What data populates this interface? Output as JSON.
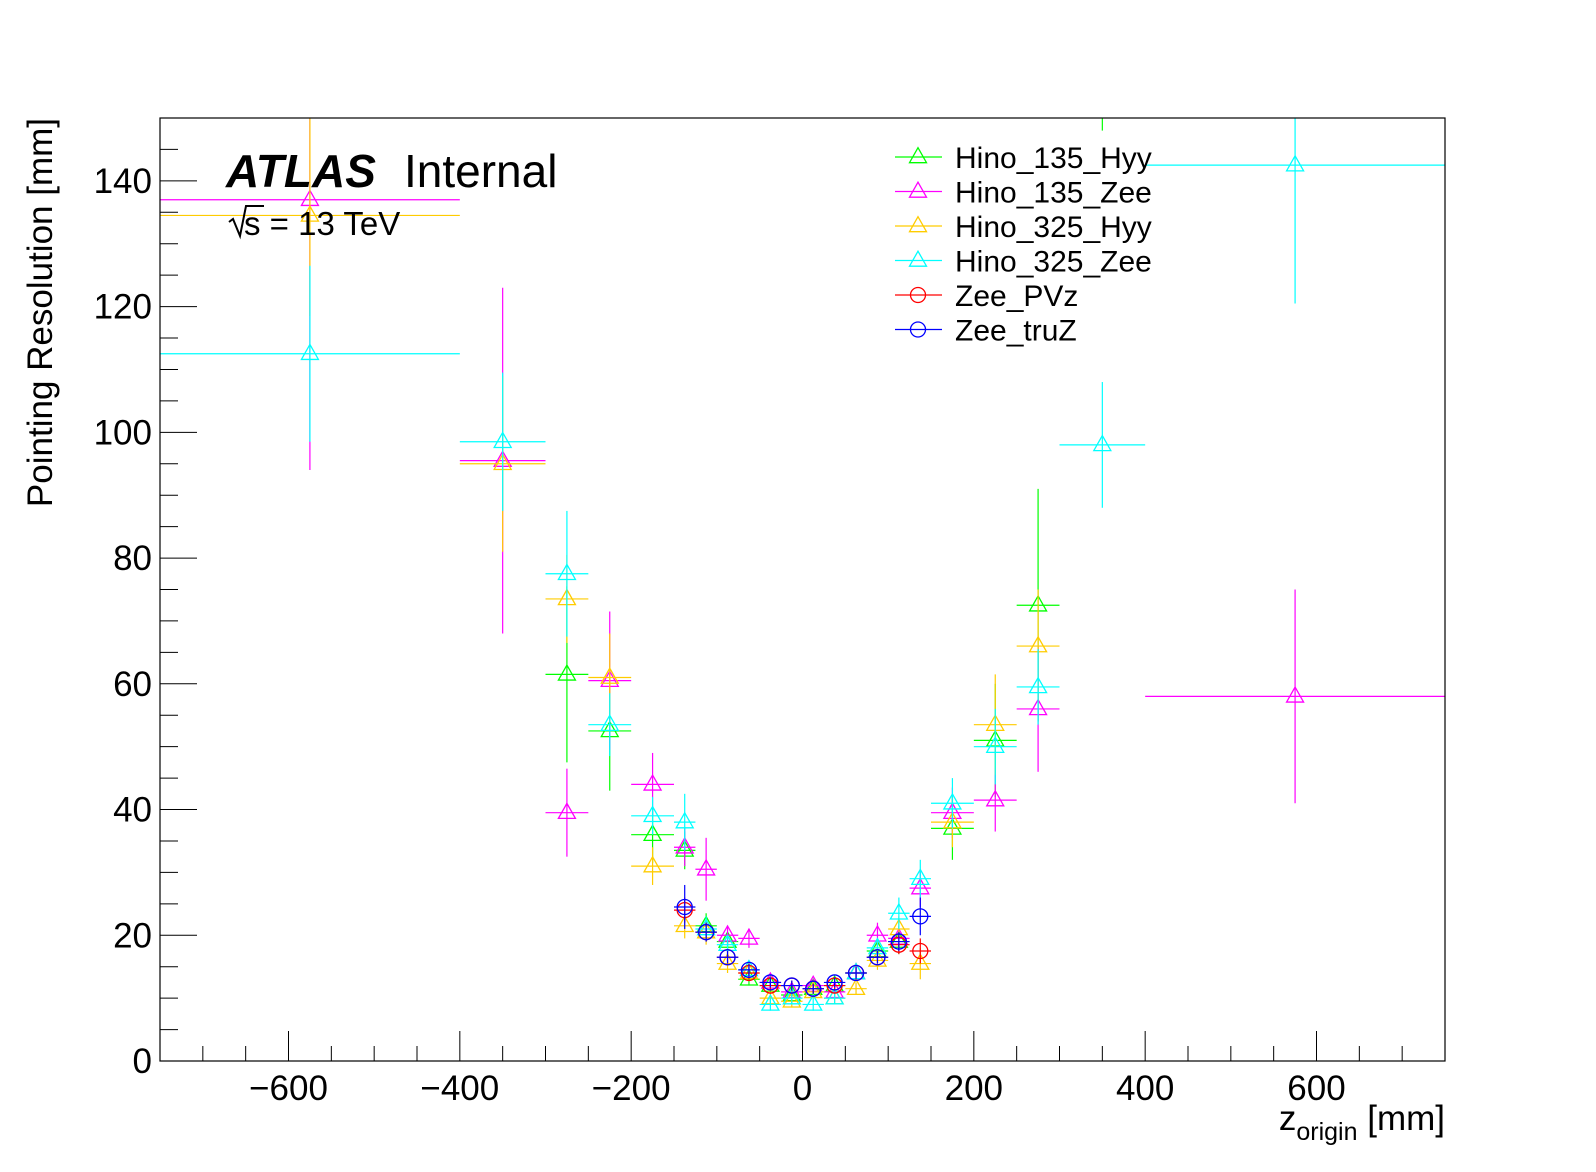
{
  "chart_data": {
    "type": "scatter",
    "xlabel": "z",
    "xlabel_sub": "origin",
    "xlabel_unit": "[mm]",
    "ylabel": "Pointing Resolution [mm]",
    "xlim": [
      -750,
      750
    ],
    "ylim": [
      0,
      150
    ],
    "x_ticks": [
      -600,
      -400,
      -200,
      0,
      200,
      400,
      600
    ],
    "y_ticks": [
      0,
      20,
      40,
      60,
      80,
      100,
      120,
      140
    ],
    "x_tick_labels": [
      "−600",
      "−400",
      "−200",
      "0",
      "200",
      "400",
      "600"
    ],
    "y_tick_labels": [
      "0",
      "20",
      "40",
      "60",
      "80",
      "100",
      "120",
      "140"
    ],
    "grid": false,
    "legend_position": "top-right",
    "atlas_label": "ATLAS",
    "atlas_sublabel": "Internal",
    "energy_label": "s = 13 TeV",
    "series": [
      {
        "name": "Hino_135_Hyy",
        "color": "#00ff00",
        "marker": "triangle",
        "points": [
          {
            "x": -275,
            "y": 61.5,
            "xerr": 25,
            "yerr": 14
          },
          {
            "x": -225,
            "y": 52.5,
            "xerr": 25,
            "yerr": 9.5
          },
          {
            "x": -175,
            "y": 36,
            "xerr": 25,
            "yerr": 4.5
          },
          {
            "x": -137.5,
            "y": 33.5,
            "xerr": 12.5,
            "yerr": 3
          },
          {
            "x": -112.5,
            "y": 21.5,
            "xerr": 12.5,
            "yerr": 2
          },
          {
            "x": -87.5,
            "y": 19,
            "xerr": 12.5,
            "yerr": 1.5
          },
          {
            "x": -62.5,
            "y": 13,
            "xerr": 12.5,
            "yerr": 1
          },
          {
            "x": -37.5,
            "y": 12,
            "xerr": 12.5,
            "yerr": 1
          },
          {
            "x": -12.5,
            "y": 10.5,
            "xerr": 12.5,
            "yerr": 1
          },
          {
            "x": 12.5,
            "y": 11.5,
            "xerr": 12.5,
            "yerr": 1
          },
          {
            "x": 37.5,
            "y": 12,
            "xerr": 12.5,
            "yerr": 1
          },
          {
            "x": 62.5,
            "y": 14,
            "xerr": 12.5,
            "yerr": 1
          },
          {
            "x": 87.5,
            "y": 17.5,
            "xerr": 12.5,
            "yerr": 1.5
          },
          {
            "x": 112.5,
            "y": 19,
            "xerr": 12.5,
            "yerr": 2
          },
          {
            "x": 175,
            "y": 37,
            "xerr": 25,
            "yerr": 5
          },
          {
            "x": 225,
            "y": 51,
            "xerr": 25,
            "yerr": 9
          },
          {
            "x": 275,
            "y": 72.5,
            "xerr": 25,
            "yerr": 18.5
          },
          {
            "x": 350,
            "y": 157,
            "xerr": 50,
            "yerr": 9
          }
        ]
      },
      {
        "name": "Hino_135_Zee",
        "color": "#ff00ff",
        "marker": "triangle",
        "points": [
          {
            "x": -575,
            "y": 137,
            "xerr": 175,
            "yerr": 43
          },
          {
            "x": -350,
            "y": 95.5,
            "xerr": 50,
            "yerr": 27.5
          },
          {
            "x": -275,
            "y": 39.5,
            "xerr": 25,
            "yerr": 7
          },
          {
            "x": -225,
            "y": 60.5,
            "xerr": 25,
            "yerr": 11
          },
          {
            "x": -175,
            "y": 44,
            "xerr": 25,
            "yerr": 5
          },
          {
            "x": -137.5,
            "y": 34,
            "xerr": 12.5,
            "yerr": 3
          },
          {
            "x": -112.5,
            "y": 30.5,
            "xerr": 12.5,
            "yerr": 5
          },
          {
            "x": -87.5,
            "y": 20,
            "xerr": 12.5,
            "yerr": 1.5
          },
          {
            "x": -62.5,
            "y": 19.5,
            "xerr": 12.5,
            "yerr": 1.5
          },
          {
            "x": -37.5,
            "y": 12.5,
            "xerr": 12.5,
            "yerr": 1
          },
          {
            "x": -12.5,
            "y": 11,
            "xerr": 12.5,
            "yerr": 1
          },
          {
            "x": 12.5,
            "y": 12,
            "xerr": 12.5,
            "yerr": 1
          },
          {
            "x": 37.5,
            "y": 11,
            "xerr": 12.5,
            "yerr": 1
          },
          {
            "x": 62.5,
            "y": 14,
            "xerr": 12.5,
            "yerr": 1
          },
          {
            "x": 87.5,
            "y": 20,
            "xerr": 12.5,
            "yerr": 2
          },
          {
            "x": 112.5,
            "y": 19.5,
            "xerr": 12.5,
            "yerr": 2
          },
          {
            "x": 137.5,
            "y": 27.5,
            "xerr": 12.5,
            "yerr": 3
          },
          {
            "x": 175,
            "y": 39.5,
            "xerr": 25,
            "yerr": 4
          },
          {
            "x": 225,
            "y": 41.5,
            "xerr": 25,
            "yerr": 5
          },
          {
            "x": 275,
            "y": 56,
            "xerr": 25,
            "yerr": 10
          },
          {
            "x": 575,
            "y": 58,
            "xerr": 175,
            "yerr": 17
          }
        ]
      },
      {
        "name": "Hino_325_Hyy",
        "color": "#ffcc00",
        "marker": "triangle",
        "points": [
          {
            "x": -575,
            "y": 134.5,
            "xerr": 175,
            "yerr": 16
          },
          {
            "x": -350,
            "y": 95,
            "xerr": 50,
            "yerr": 14
          },
          {
            "x": -275,
            "y": 73.5,
            "xerr": 25,
            "yerr": 7
          },
          {
            "x": -225,
            "y": 61,
            "xerr": 25,
            "yerr": 7
          },
          {
            "x": -175,
            "y": 31,
            "xerr": 25,
            "yerr": 3
          },
          {
            "x": -137.5,
            "y": 21.5,
            "xerr": 12.5,
            "yerr": 2
          },
          {
            "x": -112.5,
            "y": 20.5,
            "xerr": 12.5,
            "yerr": 2
          },
          {
            "x": -87.5,
            "y": 15.5,
            "xerr": 12.5,
            "yerr": 1.5
          },
          {
            "x": -62.5,
            "y": 14,
            "xerr": 12.5,
            "yerr": 1
          },
          {
            "x": -37.5,
            "y": 10,
            "xerr": 12.5,
            "yerr": 1
          },
          {
            "x": -12.5,
            "y": 9.5,
            "xerr": 12.5,
            "yerr": 1
          },
          {
            "x": 12.5,
            "y": 11,
            "xerr": 12.5,
            "yerr": 1
          },
          {
            "x": 37.5,
            "y": 10,
            "xerr": 12.5,
            "yerr": 1
          },
          {
            "x": 62.5,
            "y": 11.5,
            "xerr": 12.5,
            "yerr": 1
          },
          {
            "x": 87.5,
            "y": 16,
            "xerr": 12.5,
            "yerr": 1.5
          },
          {
            "x": 112.5,
            "y": 21,
            "xerr": 12.5,
            "yerr": 2
          },
          {
            "x": 137.5,
            "y": 15.5,
            "xerr": 12.5,
            "yerr": 2.5
          },
          {
            "x": 175,
            "y": 38,
            "xerr": 25,
            "yerr": 4
          },
          {
            "x": 225,
            "y": 53.5,
            "xerr": 25,
            "yerr": 8
          },
          {
            "x": 275,
            "y": 66,
            "xerr": 25,
            "yerr": 9
          }
        ]
      },
      {
        "name": "Hino_325_Zee",
        "color": "#00ffff",
        "marker": "triangle",
        "points": [
          {
            "x": -575,
            "y": 112.5,
            "xerr": 175,
            "yerr": 14
          },
          {
            "x": -350,
            "y": 98.5,
            "xerr": 50,
            "yerr": 11
          },
          {
            "x": -275,
            "y": 77.5,
            "xerr": 25,
            "yerr": 10
          },
          {
            "x": -225,
            "y": 53.5,
            "xerr": 25,
            "yerr": 5
          },
          {
            "x": -175,
            "y": 39,
            "xerr": 25,
            "yerr": 3
          },
          {
            "x": -137.5,
            "y": 38,
            "xerr": 12.5,
            "yerr": 4.5
          },
          {
            "x": -112.5,
            "y": 21,
            "xerr": 12.5,
            "yerr": 2
          },
          {
            "x": -87.5,
            "y": 18.5,
            "xerr": 12.5,
            "yerr": 1.5
          },
          {
            "x": -62.5,
            "y": 14.5,
            "xerr": 12.5,
            "yerr": 1
          },
          {
            "x": -37.5,
            "y": 9,
            "xerr": 12.5,
            "yerr": 1
          },
          {
            "x": -12.5,
            "y": 10,
            "xerr": 12.5,
            "yerr": 1
          },
          {
            "x": 12.5,
            "y": 9,
            "xerr": 12.5,
            "yerr": 1
          },
          {
            "x": 37.5,
            "y": 10,
            "xerr": 12.5,
            "yerr": 1
          },
          {
            "x": 62.5,
            "y": 14,
            "xerr": 12.5,
            "yerr": 1
          },
          {
            "x": 87.5,
            "y": 18,
            "xerr": 12.5,
            "yerr": 1.5
          },
          {
            "x": 112.5,
            "y": 23.5,
            "xerr": 12.5,
            "yerr": 2.5
          },
          {
            "x": 137.5,
            "y": 29,
            "xerr": 12.5,
            "yerr": 3
          },
          {
            "x": 175,
            "y": 41,
            "xerr": 25,
            "yerr": 4
          },
          {
            "x": 225,
            "y": 50,
            "xerr": 25,
            "yerr": 6
          },
          {
            "x": 275,
            "y": 59.5,
            "xerr": 25,
            "yerr": 6
          },
          {
            "x": 350,
            "y": 98,
            "xerr": 50,
            "yerr": 10
          },
          {
            "x": 575,
            "y": 142.5,
            "xerr": 175,
            "yerr": 22
          }
        ]
      },
      {
        "name": "Zee_PVz",
        "color": "#ff0000",
        "marker": "circle",
        "points": [
          {
            "x": -137.5,
            "y": 24,
            "xerr": 12.5,
            "yerr": 2
          },
          {
            "x": -112.5,
            "y": 20.5,
            "xerr": 12.5,
            "yerr": 1.5
          },
          {
            "x": -87.5,
            "y": 16.5,
            "xerr": 12.5,
            "yerr": 1
          },
          {
            "x": -62.5,
            "y": 14,
            "xerr": 12.5,
            "yerr": 1
          },
          {
            "x": -37.5,
            "y": 12,
            "xerr": 12.5,
            "yerr": 0.8
          },
          {
            "x": -12.5,
            "y": 12,
            "xerr": 12.5,
            "yerr": 0.8
          },
          {
            "x": 12.5,
            "y": 11.5,
            "xerr": 12.5,
            "yerr": 0.8
          },
          {
            "x": 37.5,
            "y": 12,
            "xerr": 12.5,
            "yerr": 0.8
          },
          {
            "x": 62.5,
            "y": 14,
            "xerr": 12.5,
            "yerr": 1
          },
          {
            "x": 87.5,
            "y": 16.5,
            "xerr": 12.5,
            "yerr": 1
          },
          {
            "x": 112.5,
            "y": 18.5,
            "xerr": 12.5,
            "yerr": 1.5
          },
          {
            "x": 137.5,
            "y": 17.5,
            "xerr": 12.5,
            "yerr": 2
          }
        ]
      },
      {
        "name": "Zee_truZ",
        "color": "#0000ff",
        "marker": "circle",
        "points": [
          {
            "x": -137.5,
            "y": 24.5,
            "xerr": 12.5,
            "yerr": 3.5
          },
          {
            "x": -112.5,
            "y": 20.5,
            "xerr": 12.5,
            "yerr": 1.5
          },
          {
            "x": -87.5,
            "y": 16.5,
            "xerr": 12.5,
            "yerr": 1
          },
          {
            "x": -62.5,
            "y": 14.5,
            "xerr": 12.5,
            "yerr": 1
          },
          {
            "x": -37.5,
            "y": 12.5,
            "xerr": 12.5,
            "yerr": 0.8
          },
          {
            "x": -12.5,
            "y": 12,
            "xerr": 12.5,
            "yerr": 0.8
          },
          {
            "x": 12.5,
            "y": 11.5,
            "xerr": 12.5,
            "yerr": 0.8
          },
          {
            "x": 37.5,
            "y": 12.5,
            "xerr": 12.5,
            "yerr": 0.8
          },
          {
            "x": 62.5,
            "y": 14,
            "xerr": 12.5,
            "yerr": 1
          },
          {
            "x": 87.5,
            "y": 16.5,
            "xerr": 12.5,
            "yerr": 1
          },
          {
            "x": 112.5,
            "y": 19,
            "xerr": 12.5,
            "yerr": 1.5
          },
          {
            "x": 137.5,
            "y": 23,
            "xerr": 12.5,
            "yerr": 3
          }
        ]
      }
    ]
  }
}
